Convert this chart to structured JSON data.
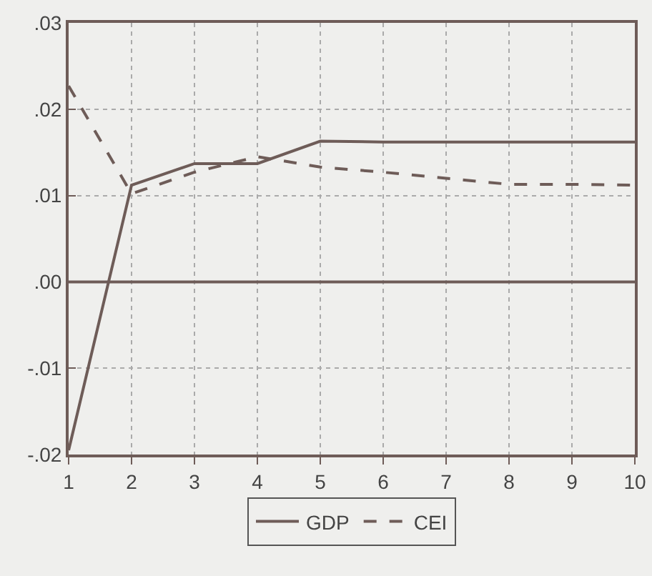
{
  "chart_data": {
    "type": "line",
    "x": [
      1,
      2,
      3,
      4,
      5,
      6,
      7,
      8,
      9,
      10
    ],
    "series": [
      {
        "name": "GDP",
        "color": "#6e5c58",
        "line_style": "solid",
        "values": [
          -0.0195,
          0.0112,
          0.0137,
          0.0137,
          0.0163,
          0.0162,
          0.0162,
          0.0162,
          0.0162,
          0.0162
        ]
      },
      {
        "name": "CEI",
        "color": "#6e5c58",
        "line_style": "dashed",
        "values": [
          0.0227,
          0.0102,
          0.0127,
          0.0145,
          0.0133,
          0.0127,
          0.012,
          0.0113,
          0.0113,
          0.0112
        ]
      }
    ],
    "xlim": [
      1,
      10
    ],
    "xticks": [
      1,
      2,
      3,
      4,
      5,
      6,
      7,
      8,
      9,
      10
    ],
    "ylim": [
      -0.02,
      0.03
    ],
    "yticks": [
      {
        "value": -0.02,
        "label": "-.02"
      },
      {
        "value": -0.01,
        "label": "-.01"
      },
      {
        "value": 0,
        "label": ".00"
      },
      {
        "value": 0.01,
        "label": ".01"
      },
      {
        "value": 0.02,
        "label": ".02"
      },
      {
        "value": 0.03,
        "label": ".03"
      }
    ],
    "ref_lines": [
      {
        "axis": "y",
        "value": 0,
        "color": "#6e5c58"
      }
    ],
    "grid": true,
    "legend": "bottom",
    "marker": "none"
  }
}
